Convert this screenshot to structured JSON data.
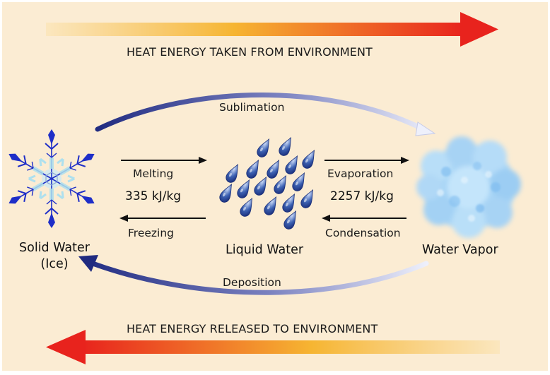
{
  "banners": {
    "top": "HEAT ENERGY TAKEN FROM ENVIRONMENT",
    "bottom": "HEAT ENERGY RELEASED TO ENVIRONMENT"
  },
  "processes": {
    "sublimation": "Sublimation",
    "deposition": "Deposition",
    "melting": "Melting",
    "freezing": "Freezing",
    "evaporation": "Evaporation",
    "condensation": "Condensation"
  },
  "values": {
    "fusion": "335 kJ/kg",
    "vaporization": "2257 kJ/kg"
  },
  "states": {
    "solid_line1": "Solid Water",
    "solid_line2": "(Ice)",
    "liquid": "Liquid Water",
    "vapor": "Water Vapor"
  },
  "colors": {
    "background": "#fbecd3",
    "heat_arrow_hot": "#e8231d",
    "heat_arrow_warm": "#f6c040",
    "cycle_arrow": "#2e3a8c",
    "droplet": "#3556a8",
    "ice": "#1e2ec8",
    "vapor": "#9fd0f5"
  },
  "icons": [
    "snowflake-icon",
    "droplets-icon",
    "vapor-cloud-icon"
  ]
}
